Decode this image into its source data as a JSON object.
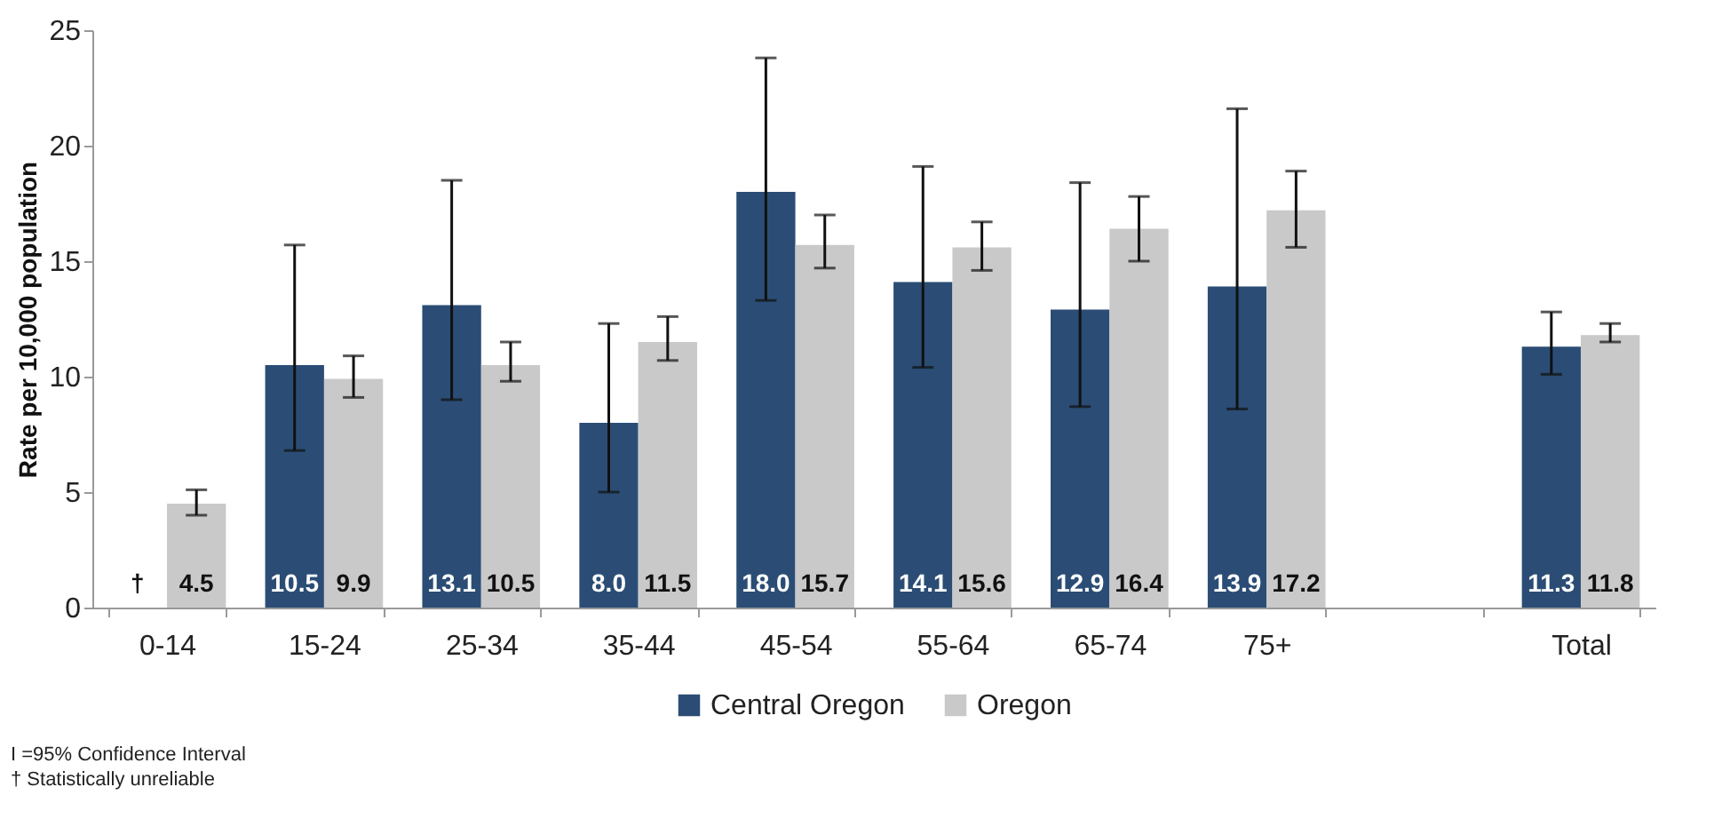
{
  "chart_data": {
    "type": "bar",
    "ylabel": "Rate per 10,000 population",
    "categories": [
      "0-14",
      "15-24",
      "25-34",
      "35-44",
      "45-54",
      "55-64",
      "65-74",
      "75+",
      null,
      "Total"
    ],
    "series": [
      {
        "name": "Central Oregon",
        "color": "#2b4d75",
        "values": [
          null,
          10.5,
          13.1,
          8.0,
          18.0,
          14.1,
          12.9,
          13.9,
          null,
          11.3
        ],
        "value_labels": [
          "†",
          "10.5",
          "13.1",
          "8.0",
          "18.0",
          "14.1",
          "12.9",
          "13.9",
          null,
          "11.3"
        ],
        "errors": [
          null,
          [
            6.8,
            15.7
          ],
          [
            9.0,
            18.5
          ],
          [
            5.0,
            12.3
          ],
          [
            13.3,
            23.8
          ],
          [
            10.4,
            19.1
          ],
          [
            8.7,
            18.4
          ],
          [
            8.6,
            21.6
          ],
          null,
          [
            10.1,
            12.8
          ]
        ]
      },
      {
        "name": "Oregon",
        "color": "#c9c9c9",
        "values": [
          4.5,
          9.9,
          10.5,
          11.5,
          15.7,
          15.6,
          16.4,
          17.2,
          null,
          11.8
        ],
        "value_labels": [
          "4.5",
          "9.9",
          "10.5",
          "11.5",
          "15.7",
          "15.6",
          "16.4",
          "17.2",
          null,
          "11.8"
        ],
        "errors": [
          [
            4.0,
            5.1
          ],
          [
            9.1,
            10.9
          ],
          [
            9.8,
            11.5
          ],
          [
            10.7,
            12.6
          ],
          [
            14.7,
            17.0
          ],
          [
            14.6,
            16.7
          ],
          [
            15.0,
            17.8
          ],
          [
            15.6,
            18.9
          ],
          null,
          [
            11.5,
            12.3
          ]
        ]
      }
    ],
    "ylim": [
      0,
      25
    ],
    "yticks": [
      0,
      5,
      10,
      15,
      20,
      25
    ],
    "grid": false,
    "legend": "bottom",
    "annotations": [
      "I =95% Confidence Interval",
      "† Statistically unreliable"
    ]
  }
}
